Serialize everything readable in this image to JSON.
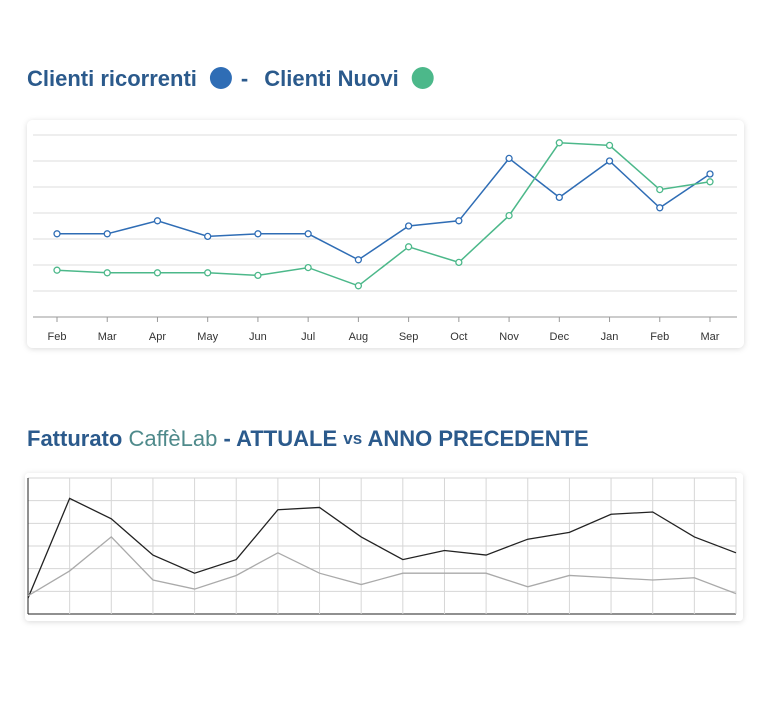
{
  "chart_data": [
    {
      "type": "line",
      "title_separator": "-",
      "categories": [
        "Feb",
        "Mar",
        "Apr",
        "May",
        "Jun",
        "Jul",
        "Aug",
        "Sep",
        "Oct",
        "Nov",
        "Dec",
        "Jan",
        "Feb",
        "Mar"
      ],
      "series": [
        {
          "name": "Clienti ricorrenti",
          "color": "#2f6db5",
          "values": [
            3.2,
            3.2,
            3.7,
            3.1,
            3.2,
            3.2,
            2.2,
            3.5,
            3.7,
            6.1,
            4.6,
            6.0,
            4.2,
            5.5
          ]
        },
        {
          "name": "Clienti Nuovi",
          "color": "#4cb88a",
          "values": [
            1.8,
            1.7,
            1.7,
            1.7,
            1.6,
            1.9,
            1.2,
            2.7,
            2.1,
            3.9,
            6.7,
            6.6,
            4.9,
            5.2
          ]
        }
      ],
      "ylim": [
        0,
        7
      ],
      "yticks": [
        0,
        1,
        2,
        3,
        4,
        5,
        6,
        7
      ],
      "grid": true,
      "markers": true
    },
    {
      "type": "line",
      "title": [
        "Fatturato",
        "CaffèLab",
        "- ATTUALE",
        "vs",
        "ANNO PRECEDENTE"
      ],
      "categories": [
        null,
        null,
        null,
        null,
        null,
        null,
        null,
        null,
        null,
        null,
        null,
        null,
        null,
        null,
        null,
        null,
        null,
        null
      ],
      "series": [
        {
          "color": "#222222",
          "values": [
            0.7,
            5.1,
            4.2,
            2.6,
            1.8,
            2.4,
            4.6,
            4.7,
            3.4,
            2.4,
            2.8,
            2.6,
            3.3,
            3.6,
            4.4,
            4.5,
            3.4,
            2.7
          ]
        },
        {
          "color": "#aaaaaa",
          "values": [
            0.8,
            1.9,
            3.4,
            1.5,
            1.1,
            1.7,
            2.7,
            1.8,
            1.3,
            1.8,
            1.8,
            1.8,
            1.2,
            1.7,
            1.6,
            1.5,
            1.6,
            0.9
          ]
        }
      ],
      "ylim": [
        0,
        6
      ],
      "yticks": [
        0,
        1,
        2,
        3,
        4,
        5,
        6
      ],
      "grid": true,
      "markers": false
    }
  ]
}
